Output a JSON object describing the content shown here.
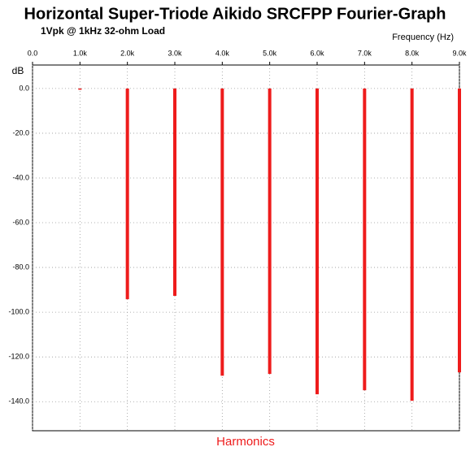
{
  "chart_data": {
    "type": "bar",
    "title": "Horizontal Super-Triode Aikido SRCFPP Fourier-Graph",
    "subtitle": "1Vpk @ 1kHz 32-ohm Load",
    "x_axis_label": "Frequency  (Hz)",
    "y_axis_label": "dB",
    "bottom_label": "Harmonics",
    "x": [
      1000,
      2000,
      3000,
      4000,
      5000,
      6000,
      7000,
      8000,
      9000
    ],
    "values": [
      0,
      -94.2,
      -92.7,
      -128.4,
      -127.6,
      -136.7,
      -134.9,
      -139.6,
      -126.9
    ],
    "color": "#ee1c1c",
    "xlim": [
      0,
      9000
    ],
    "xticks": [
      {
        "value": 0,
        "label": "0.0"
      },
      {
        "value": 1000,
        "label": "1.0k"
      },
      {
        "value": 2000,
        "label": "2.0k"
      },
      {
        "value": 3000,
        "label": "3.0k"
      },
      {
        "value": 4000,
        "label": "4.0k"
      },
      {
        "value": 5000,
        "label": "5.0k"
      },
      {
        "value": 6000,
        "label": "6.0k"
      },
      {
        "value": 7000,
        "label": "7.0k"
      },
      {
        "value": 8000,
        "label": "8.0k"
      },
      {
        "value": 9000,
        "label": "9.0k"
      }
    ],
    "ylim": [
      -153,
      10.5
    ],
    "yticks": [
      {
        "value": 0,
        "label": "0.0"
      },
      {
        "value": -20,
        "label": "-20.0"
      },
      {
        "value": -40,
        "label": "-40.0"
      },
      {
        "value": -60,
        "label": "-60.0"
      },
      {
        "value": -80,
        "label": "-80.0"
      },
      {
        "value": -100,
        "label": "-100.0"
      },
      {
        "value": -120,
        "label": "-120.0"
      },
      {
        "value": -140,
        "label": "-140.0"
      }
    ],
    "grid": true
  }
}
